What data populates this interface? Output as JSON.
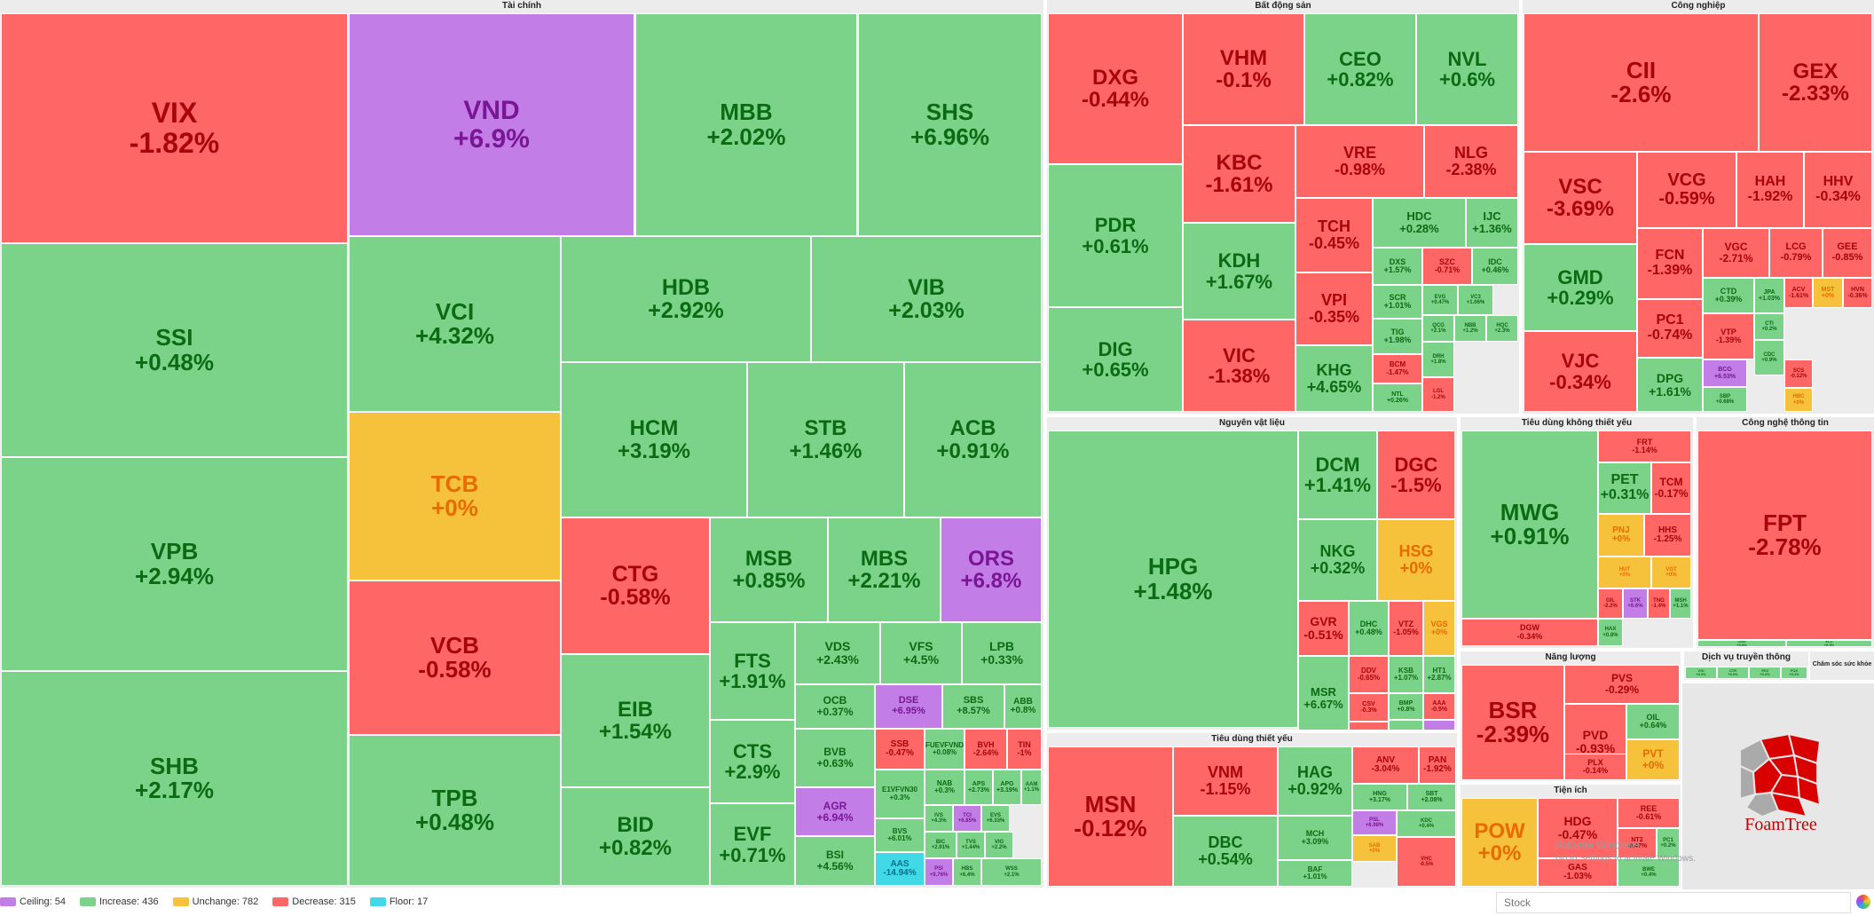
{
  "sectors": [
    {
      "name": "Tài chính",
      "tiles": [
        [
          "VIX",
          "-1.82%",
          "down"
        ],
        [
          "VND",
          "+6.9%",
          "ceil"
        ],
        [
          "MBB",
          "+2.02%",
          "up"
        ],
        [
          "SHS",
          "+6.96%",
          "up"
        ],
        [
          "SSI",
          "+0.48%",
          "up"
        ],
        [
          "VCI",
          "+4.32%",
          "up"
        ],
        [
          "HDB",
          "+2.92%",
          "up"
        ],
        [
          "VIB",
          "+2.03%",
          "up"
        ],
        [
          "VPB",
          "+2.94%",
          "up"
        ],
        [
          "TCB",
          "+0%",
          "flat"
        ],
        [
          "HCM",
          "+3.19%",
          "up"
        ],
        [
          "STB",
          "+1.46%",
          "up"
        ],
        [
          "ACB",
          "+0.91%",
          "up"
        ],
        [
          "VCB",
          "-0.58%",
          "down"
        ],
        [
          "CTG",
          "-0.58%",
          "down"
        ],
        [
          "MSB",
          "+0.85%",
          "up"
        ],
        [
          "MBS",
          "+2.21%",
          "up"
        ],
        [
          "ORS",
          "+6.8%",
          "ceil"
        ],
        [
          "SHB",
          "+2.17%",
          "up"
        ],
        [
          "TPB",
          "+0.48%",
          "up"
        ],
        [
          "EIB",
          "+1.54%",
          "up"
        ],
        [
          "BID",
          "+0.82%",
          "up"
        ],
        [
          "FTS",
          "+1.91%",
          "up"
        ],
        [
          "CTS",
          "+2.9%",
          "up"
        ],
        [
          "EVF",
          "+0.71%",
          "up"
        ],
        [
          "VDS",
          "+2.43%",
          "up"
        ],
        [
          "VFS",
          "+4.5%",
          "up"
        ],
        [
          "LPB",
          "+0.33%",
          "up"
        ],
        [
          "OCB",
          "+0.37%",
          "up"
        ],
        [
          "DSE",
          "+6.95%",
          "ceil"
        ],
        [
          "SBS",
          "+8.57%",
          "up"
        ],
        [
          "ABB",
          "+0.8%",
          "up"
        ],
        [
          "BVB",
          "+0.63%",
          "up"
        ],
        [
          "SSB",
          "-0.47%",
          "down"
        ],
        [
          "FUEVFVND",
          "+0.08%",
          "up"
        ],
        [
          "BVH",
          "-2.64%",
          "down"
        ],
        [
          "TIN",
          "-1%",
          "down"
        ],
        [
          "AGR",
          "+6.94%",
          "ceil"
        ],
        [
          "NAB",
          "+0.3%",
          "up"
        ],
        [
          "APS",
          "+2.73%",
          "up"
        ],
        [
          "APG",
          "+3.19%",
          "up"
        ],
        [
          "E1VFVN30",
          "+0.3%",
          "up"
        ],
        [
          "IVS",
          "+4.3%",
          "up"
        ],
        [
          "TCI",
          "+6.85%",
          "ceil"
        ],
        [
          "EVS",
          "+6.33%",
          "up"
        ],
        [
          "AAM",
          "+1.1%",
          "up"
        ],
        [
          "BSI",
          "+4.56%",
          "up"
        ],
        [
          "BVS",
          "+6.01%",
          "up"
        ],
        [
          "BIC",
          "+2.91%",
          "up"
        ],
        [
          "TVS",
          "+1.44%",
          "up"
        ],
        [
          "VIG",
          "+2.2%",
          "up"
        ],
        [
          "AAS",
          "-14.94%",
          "floor"
        ],
        [
          "PSI",
          "+9.76%",
          "ceil"
        ],
        [
          "HBS",
          "+6.4%",
          "up"
        ],
        [
          "WSS",
          "+2.1%",
          "up"
        ]
      ]
    },
    {
      "name": "Bất động sản",
      "tiles": [
        [
          "DXG",
          "-0.44%",
          "down"
        ],
        [
          "VHM",
          "-0.1%",
          "down"
        ],
        [
          "CEO",
          "+0.82%",
          "up"
        ],
        [
          "NVL",
          "+0.6%",
          "up"
        ],
        [
          "KBC",
          "-1.61%",
          "down"
        ],
        [
          "VRE",
          "-0.98%",
          "down"
        ],
        [
          "NLG",
          "-2.38%",
          "down"
        ],
        [
          "PDR",
          "+0.61%",
          "up"
        ],
        [
          "TCH",
          "-0.45%",
          "down"
        ],
        [
          "HDC",
          "+0.28%",
          "up"
        ],
        [
          "IJC",
          "+1.36%",
          "up"
        ],
        [
          "KDH",
          "+1.67%",
          "up"
        ],
        [
          "DXS",
          "+1.57%",
          "up"
        ],
        [
          "SZC",
          "-0.71%",
          "down"
        ],
        [
          "IDC",
          "+0.46%",
          "up"
        ],
        [
          "VPI",
          "-0.35%",
          "down"
        ],
        [
          "SCR",
          "+1.01%",
          "up"
        ],
        [
          "EVG",
          "+0.47%",
          "up"
        ],
        [
          "VC3",
          "+1.06%",
          "up"
        ],
        [
          "DIG",
          "+0.65%",
          "up"
        ],
        [
          "VIC",
          "-1.38%",
          "down"
        ],
        [
          "TIG",
          "+1.98%",
          "up"
        ],
        [
          "QCG",
          "+2.1%",
          "up"
        ],
        [
          "NBB",
          "+1.2%",
          "up"
        ],
        [
          "HQC",
          "+2.3%",
          "up"
        ],
        [
          "KHG",
          "+4.65%",
          "up"
        ],
        [
          "BCM",
          "-1.47%",
          "down"
        ],
        [
          "NTL",
          "+0.26%",
          "up"
        ],
        [
          "DRH",
          "+1.8%",
          "up"
        ],
        [
          "LGL",
          "-1.2%",
          "down"
        ],
        [
          "ITC",
          "+0.9%",
          "up"
        ]
      ]
    },
    {
      "name": "Công nghiệp",
      "tiles": [
        [
          "CII",
          "-2.6%",
          "down"
        ],
        [
          "GEX",
          "-2.33%",
          "down"
        ],
        [
          "VSC",
          "-3.69%",
          "down"
        ],
        [
          "VCG",
          "-0.59%",
          "down"
        ],
        [
          "HAH",
          "-1.92%",
          "down"
        ],
        [
          "HHV",
          "-0.34%",
          "down"
        ],
        [
          "GMD",
          "+0.29%",
          "up"
        ],
        [
          "FCN",
          "-1.39%",
          "down"
        ],
        [
          "VGC",
          "-2.71%",
          "down"
        ],
        [
          "LCG",
          "-0.79%",
          "down"
        ],
        [
          "GEE",
          "-0.85%",
          "down"
        ],
        [
          "PC1",
          "-0.74%",
          "down"
        ],
        [
          "CTD",
          "+0.39%",
          "up"
        ],
        [
          "JPA",
          "+1.03%",
          "up"
        ],
        [
          "ACV",
          "-1.61%",
          "down"
        ],
        [
          "MST",
          "+0%",
          "flat"
        ],
        [
          "HVN",
          "-0.36%",
          "down"
        ],
        [
          "VJC",
          "-0.34%",
          "down"
        ],
        [
          "VTP",
          "-1.39%",
          "down"
        ],
        [
          "CTI",
          "+0.2%",
          "up"
        ],
        [
          "DPG",
          "+1.61%",
          "up"
        ],
        [
          "BCG",
          "+6.53%",
          "ceil"
        ],
        [
          "SBP",
          "+0.68%",
          "up"
        ],
        [
          "SCS",
          "-0.12%",
          "down"
        ],
        [
          "HBC",
          "+0%",
          "flat"
        ],
        [
          "CDC",
          "+0.9%",
          "up"
        ]
      ]
    },
    {
      "name": "Nguyên vật liệu",
      "tiles": [
        [
          "HPG",
          "+1.48%",
          "up"
        ],
        [
          "DCM",
          "+1.41%",
          "up"
        ],
        [
          "DGC",
          "-1.5%",
          "down"
        ],
        [
          "NKG",
          "+0.32%",
          "up"
        ],
        [
          "HSG",
          "+0%",
          "flat"
        ],
        [
          "GVR",
          "-0.51%",
          "down"
        ],
        [
          "DHC",
          "+0.48%",
          "up"
        ],
        [
          "VTZ",
          "-1.05%",
          "down"
        ],
        [
          "VGS",
          "+0%",
          "flat"
        ],
        [
          "MSR",
          "+6.67%",
          "up"
        ],
        [
          "DDV",
          "-0.65%",
          "down"
        ],
        [
          "KSB",
          "+1.07%",
          "up"
        ],
        [
          "HT1",
          "+2.87%",
          "up"
        ],
        [
          "DPM",
          "+0.19%",
          "up"
        ],
        [
          "CSV",
          "-0.3%",
          "down"
        ],
        [
          "DPR",
          "-0.59%",
          "down"
        ],
        [
          "BMP",
          "+0.8%",
          "up"
        ],
        [
          "AAA",
          "-0.5%",
          "down"
        ],
        [
          "PHR",
          "+1.2%",
          "up"
        ],
        [
          "TLH",
          "+6.7%",
          "ceil"
        ]
      ]
    },
    {
      "name": "Tiêu dùng không thiết yếu",
      "tiles": [
        [
          "MWG",
          "+0.91%",
          "up"
        ],
        [
          "FRT",
          "-1.14%",
          "down"
        ],
        [
          "PET",
          "+0.31%",
          "up"
        ],
        [
          "TCM",
          "-0.17%",
          "down"
        ],
        [
          "PNJ",
          "+0%",
          "flat"
        ],
        [
          "HHS",
          "-1.25%",
          "down"
        ],
        [
          "HUT",
          "+0%",
          "flat"
        ],
        [
          "GIL",
          "-2.2%",
          "down"
        ],
        [
          "DGW",
          "-0.34%",
          "down"
        ],
        [
          "STK",
          "+6.6%",
          "ceil"
        ],
        [
          "TNG",
          "-1.4%",
          "down"
        ],
        [
          "VGT",
          "+0%",
          "flat"
        ],
        [
          "MSH",
          "+1.1%",
          "up"
        ],
        [
          "HAX",
          "+0.8%",
          "up"
        ]
      ]
    },
    {
      "name": "Công nghệ thông tin",
      "tiles": [
        [
          "FPT",
          "-2.78%",
          "down"
        ],
        [
          "CMG",
          "+0.5%",
          "up"
        ],
        [
          "ELC",
          "+0.3%",
          "up"
        ]
      ]
    },
    {
      "name": "Năng lượng",
      "tiles": [
        [
          "BSR",
          "-2.39%",
          "down"
        ],
        [
          "PVS",
          "-0.29%",
          "down"
        ],
        [
          "PVD",
          "-0.93%",
          "down"
        ],
        [
          "OIL",
          "+0.64%",
          "up"
        ],
        [
          "PVT",
          "+0%",
          "flat"
        ],
        [
          "PLX",
          "-0.14%",
          "down"
        ],
        [
          "PVC",
          "+0.5%",
          "up"
        ]
      ]
    },
    {
      "name": "Tiện ích",
      "tiles": [
        [
          "POW",
          "+0%",
          "flat"
        ],
        [
          "HDG",
          "-0.47%",
          "down"
        ],
        [
          "REE",
          "-0.61%",
          "down"
        ],
        [
          "NT2",
          "-0.47%",
          "down"
        ],
        [
          "GAS",
          "-1.03%",
          "down"
        ],
        [
          "PC1",
          "+0.2%",
          "up"
        ],
        [
          "BWE",
          "+0.4%",
          "up"
        ]
      ]
    },
    {
      "name": "Dịch vụ truyền thông",
      "tiles": [
        [
          "VGI",
          "+0.3%",
          "up"
        ],
        [
          "CTR",
          "+0.5%",
          "up"
        ],
        [
          "YEG",
          "+0.2%",
          "up"
        ],
        [
          "FOX",
          "+0.1%",
          "up"
        ]
      ]
    },
    {
      "name": "Chăm sóc sức khỏe",
      "tiles": []
    },
    {
      "name": "Tiêu dùng thiết yếu",
      "tiles": [
        [
          "MSN",
          "-0.12%",
          "down"
        ],
        [
          "VNM",
          "-1.15%",
          "down"
        ],
        [
          "HAG",
          "+0.92%",
          "up"
        ],
        [
          "ANV",
          "-3.04%",
          "down"
        ],
        [
          "PAN",
          "-1.92%",
          "down"
        ],
        [
          "DBC",
          "+0.54%",
          "up"
        ],
        [
          "HNG",
          "+3.17%",
          "up"
        ],
        [
          "SBT",
          "+2.08%",
          "up"
        ],
        [
          "MCH",
          "+3.09%",
          "up"
        ],
        [
          "BAF",
          "+1.01%",
          "up"
        ],
        [
          "PSL",
          "+6.98%",
          "ceil"
        ],
        [
          "SAB",
          "+0%",
          "flat"
        ],
        [
          "KDC",
          "+0.4%",
          "up"
        ],
        [
          "VHC",
          "-0.5%",
          "down"
        ]
      ]
    }
  ],
  "legend": [
    {
      "label": "Ceiling: 54",
      "color": "#c27ee6"
    },
    {
      "label": "Increase: 436",
      "color": "#7bd389"
    },
    {
      "label": "Unchange: 782",
      "color": "#f6c23c"
    },
    {
      "label": "Decrease: 315",
      "color": "#ff6666"
    },
    {
      "label": "Floor: 17",
      "color": "#41d9e8"
    }
  ],
  "search": {
    "placeholder": "Stock"
  },
  "brand": {
    "label": "FoamTree"
  },
  "watermark": {
    "line1": "Activate Windows",
    "line2": "Go to Settings to activate Windows."
  },
  "colors": {
    "up": "#7bd389",
    "down": "#ff6666",
    "ceil": "#c27ee6",
    "flat": "#f6c23c",
    "floor": "#41d9e8"
  }
}
